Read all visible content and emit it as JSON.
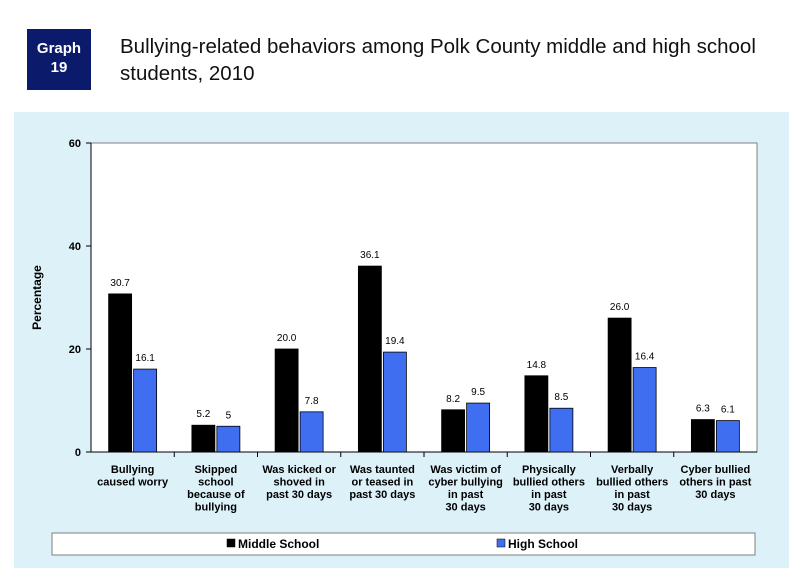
{
  "header": {
    "badge_line1": "Graph",
    "badge_line2": "19",
    "title": "Bullying-related behaviors among Polk County middle and high school students, 2010"
  },
  "colors": {
    "panel_bg": "#dcf1f8",
    "middle_school": "#000000",
    "high_school": "#3f6ef0",
    "badge_bg": "#0c1a6b"
  },
  "chart_data": {
    "type": "bar",
    "ylabel": "Percentage",
    "ylim": [
      0,
      60
    ],
    "yticks": [
      0,
      20,
      40,
      60
    ],
    "grid": false,
    "legend_position": "bottom",
    "categories": [
      [
        "Bullying",
        "caused worry"
      ],
      [
        "Skipped",
        "school",
        "because of",
        "bullying"
      ],
      [
        "Was kicked or",
        "shoved in",
        "past 30 days"
      ],
      [
        "Was taunted",
        "or teased in",
        "past 30 days"
      ],
      [
        "Was victim of",
        "cyber bullying",
        "in past",
        "30 days"
      ],
      [
        "Physically",
        "bullied others",
        "in past",
        "30 days"
      ],
      [
        "Verbally",
        "bullied others",
        "in past",
        "30 days"
      ],
      [
        "Cyber bullied",
        "others in past",
        "30 days"
      ]
    ],
    "series": [
      {
        "name": "Middle School",
        "values": [
          30.7,
          5.2,
          20.0,
          36.1,
          8.2,
          14.8,
          26.0,
          6.3
        ],
        "labels": [
          "30.7",
          "5.2",
          "20.0",
          "36.1",
          "8.2",
          "14.8",
          "26.0",
          "6.3"
        ]
      },
      {
        "name": "High School",
        "values": [
          16.1,
          5,
          7.8,
          19.4,
          9.5,
          8.5,
          16.4,
          6.1
        ],
        "labels": [
          "16.1",
          "5",
          "7.8",
          "19.4",
          "9.5",
          "8.5",
          "16.4",
          "6.1"
        ]
      }
    ]
  }
}
